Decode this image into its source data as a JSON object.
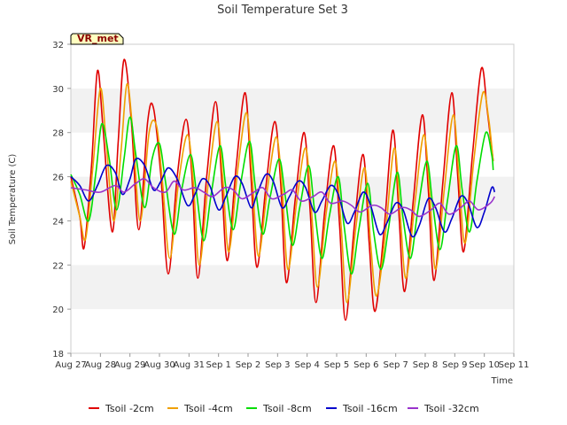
{
  "chart_data": {
    "type": "line",
    "title": "Soil Temperature Set 3",
    "xlabel": "Time",
    "ylabel": "Soil Temperature (C)",
    "ylim": [
      18,
      32
    ],
    "yticks": [
      18,
      20,
      22,
      24,
      26,
      28,
      30,
      32
    ],
    "xlim": [
      0,
      15
    ],
    "x_tick_labels": [
      "Aug 27",
      "Aug 28",
      "Aug 29",
      "Aug 30",
      "Aug 31",
      "Sep 1",
      "Sep 2",
      "Sep 3",
      "Sep 4",
      "Sep 5",
      "Sep 6",
      "Sep 7",
      "Sep 8",
      "Sep 9",
      "Sep 10",
      "Sep 11"
    ],
    "x_units": "days since Aug 27 00:00",
    "grid": "horizontal bands",
    "band_color": "#f2f2f2",
    "legend_position": "bottom",
    "badge": {
      "text": "VR_met",
      "bg": "#ffffc0",
      "border": "#000000",
      "text_color": "#8b0000"
    },
    "series": [
      {
        "name": "Tsoil -2cm",
        "color": "#e00000",
        "x": [
          0.0,
          0.3,
          0.45,
          0.7,
          0.9,
          1.1,
          1.4,
          1.6,
          1.8,
          2.05,
          2.3,
          2.6,
          2.8,
          3.05,
          3.3,
          3.6,
          3.9,
          4.1,
          4.3,
          4.6,
          4.9,
          5.1,
          5.3,
          5.6,
          5.9,
          6.1,
          6.3,
          6.6,
          6.9,
          7.1,
          7.3,
          7.6,
          7.9,
          8.1,
          8.3,
          8.6,
          8.9,
          9.1,
          9.3,
          9.6,
          9.9,
          10.1,
          10.3,
          10.6,
          10.9,
          11.1,
          11.3,
          11.6,
          11.9,
          12.1,
          12.3,
          12.6,
          12.9,
          13.1,
          13.3,
          13.6,
          13.9,
          14.1,
          14.3
        ],
        "y": [
          26.0,
          24.2,
          22.8,
          26.5,
          30.8,
          28.0,
          23.5,
          27.5,
          31.3,
          28.5,
          23.6,
          28.5,
          29.1,
          26.0,
          21.6,
          26.0,
          28.6,
          26.0,
          21.4,
          26.0,
          29.4,
          26.0,
          22.2,
          26.5,
          29.8,
          26.0,
          21.9,
          25.5,
          28.5,
          25.8,
          21.2,
          25.0,
          28.0,
          24.5,
          20.3,
          24.5,
          27.4,
          23.8,
          19.5,
          23.8,
          27.0,
          23.0,
          19.9,
          23.5,
          28.1,
          24.5,
          20.8,
          25.0,
          28.8,
          25.5,
          21.3,
          25.8,
          29.8,
          26.0,
          22.6,
          27.0,
          30.9,
          29.0,
          26.7
        ]
      },
      {
        "name": "Tsoil -4cm",
        "color": "#f0a000",
        "x": [
          0.0,
          0.3,
          0.5,
          0.75,
          1.0,
          1.2,
          1.45,
          1.7,
          1.9,
          2.1,
          2.35,
          2.65,
          2.9,
          3.1,
          3.35,
          3.65,
          3.95,
          4.15,
          4.35,
          4.65,
          4.95,
          5.15,
          5.35,
          5.65,
          5.95,
          6.15,
          6.35,
          6.65,
          6.95,
          7.15,
          7.35,
          7.65,
          7.95,
          8.15,
          8.35,
          8.65,
          8.95,
          9.15,
          9.35,
          9.65,
          9.95,
          10.15,
          10.35,
          10.65,
          10.95,
          11.15,
          11.35,
          11.65,
          11.95,
          12.15,
          12.35,
          12.65,
          12.95,
          13.15,
          13.35,
          13.65,
          13.95,
          14.15,
          14.3
        ],
        "y": [
          25.8,
          24.2,
          23.2,
          26.5,
          30.0,
          27.5,
          24.0,
          27.2,
          30.2,
          28.0,
          24.0,
          28.0,
          28.3,
          25.8,
          22.3,
          25.8,
          27.9,
          25.7,
          22.0,
          25.7,
          28.5,
          25.8,
          22.6,
          26.3,
          28.9,
          25.8,
          22.4,
          25.4,
          27.8,
          25.6,
          21.8,
          24.9,
          27.3,
          24.4,
          21.0,
          24.4,
          26.7,
          23.8,
          20.3,
          23.7,
          26.4,
          23.0,
          20.6,
          23.4,
          27.3,
          24.3,
          21.4,
          24.8,
          27.9,
          25.3,
          21.8,
          25.5,
          28.8,
          25.8,
          23.0,
          26.8,
          29.8,
          28.6,
          26.7
        ]
      },
      {
        "name": "Tsoil -8cm",
        "color": "#00dd00",
        "x": [
          0.0,
          0.3,
          0.6,
          0.85,
          1.05,
          1.3,
          1.55,
          1.8,
          2.0,
          2.2,
          2.5,
          2.75,
          3.0,
          3.2,
          3.5,
          3.75,
          4.05,
          4.25,
          4.5,
          4.75,
          5.05,
          5.25,
          5.5,
          5.75,
          6.05,
          6.25,
          6.5,
          6.75,
          7.05,
          7.25,
          7.5,
          7.75,
          8.05,
          8.25,
          8.5,
          8.75,
          9.05,
          9.25,
          9.5,
          9.75,
          10.05,
          10.25,
          10.5,
          10.75,
          11.05,
          11.25,
          11.5,
          11.75,
          12.05,
          12.25,
          12.5,
          12.75,
          13.05,
          13.25,
          13.5,
          13.75,
          14.05,
          14.25,
          14.3
        ],
        "y": [
          26.1,
          25.2,
          24.0,
          26.2,
          28.4,
          26.8,
          24.5,
          26.8,
          28.7,
          27.0,
          24.6,
          26.8,
          27.5,
          25.8,
          23.4,
          25.4,
          27.0,
          25.3,
          23.1,
          25.2,
          27.4,
          25.5,
          23.6,
          25.7,
          27.6,
          25.5,
          23.4,
          25.1,
          26.8,
          25.2,
          22.9,
          24.6,
          26.5,
          24.5,
          22.3,
          24.2,
          26.0,
          23.8,
          21.6,
          23.6,
          25.7,
          23.5,
          21.8,
          23.6,
          26.2,
          24.1,
          22.3,
          24.5,
          26.7,
          24.8,
          22.7,
          24.9,
          27.4,
          25.4,
          23.5,
          25.8,
          28.0,
          27.0,
          26.3
        ]
      },
      {
        "name": "Tsoil -16cm",
        "color": "#0000cc",
        "x": [
          0.0,
          0.3,
          0.6,
          0.9,
          1.2,
          1.5,
          1.75,
          2.0,
          2.2,
          2.5,
          2.8,
          3.05,
          3.3,
          3.6,
          3.95,
          4.2,
          4.45,
          4.7,
          5.0,
          5.25,
          5.55,
          5.8,
          6.1,
          6.3,
          6.6,
          6.85,
          7.15,
          7.4,
          7.7,
          7.95,
          8.25,
          8.5,
          8.8,
          9.05,
          9.35,
          9.6,
          9.9,
          10.15,
          10.45,
          10.7,
          11.0,
          11.25,
          11.55,
          11.8,
          12.1,
          12.35,
          12.65,
          12.9,
          13.2,
          13.45,
          13.75,
          14.0,
          14.25,
          14.35
        ],
        "y": [
          26.0,
          25.6,
          24.9,
          25.6,
          26.5,
          26.2,
          25.2,
          25.9,
          26.8,
          26.5,
          25.4,
          25.8,
          26.4,
          25.9,
          24.7,
          25.2,
          25.9,
          25.6,
          24.5,
          25.1,
          26.0,
          25.7,
          24.6,
          25.2,
          26.1,
          25.8,
          24.6,
          25.1,
          25.8,
          25.5,
          24.4,
          24.9,
          25.6,
          25.2,
          23.9,
          24.4,
          25.3,
          24.7,
          23.4,
          23.9,
          24.8,
          24.5,
          23.3,
          23.8,
          25.0,
          24.6,
          23.5,
          24.1,
          25.1,
          24.8,
          23.7,
          24.4,
          25.5,
          25.3
        ]
      },
      {
        "name": "Tsoil -32cm",
        "color": "#9933cc",
        "x": [
          0.0,
          0.5,
          1.0,
          1.5,
          1.8,
          2.2,
          2.5,
          2.8,
          3.2,
          3.5,
          3.8,
          4.2,
          4.5,
          4.8,
          5.2,
          5.5,
          5.8,
          6.2,
          6.5,
          6.8,
          7.2,
          7.5,
          7.8,
          8.2,
          8.5,
          8.8,
          9.2,
          9.5,
          9.8,
          10.2,
          10.5,
          10.8,
          11.2,
          11.5,
          11.8,
          12.2,
          12.5,
          12.8,
          13.2,
          13.5,
          13.8,
          14.2,
          14.35
        ],
        "y": [
          25.5,
          25.4,
          25.3,
          25.6,
          25.3,
          25.7,
          25.9,
          25.5,
          25.3,
          25.8,
          25.4,
          25.5,
          25.3,
          25.1,
          25.5,
          25.4,
          25.0,
          25.3,
          25.5,
          25.0,
          25.2,
          25.4,
          24.9,
          25.1,
          25.3,
          24.8,
          24.9,
          24.7,
          24.4,
          24.7,
          24.6,
          24.3,
          24.6,
          24.5,
          24.2,
          24.5,
          24.8,
          24.3,
          24.6,
          24.9,
          24.5,
          24.8,
          25.1
        ]
      }
    ]
  }
}
